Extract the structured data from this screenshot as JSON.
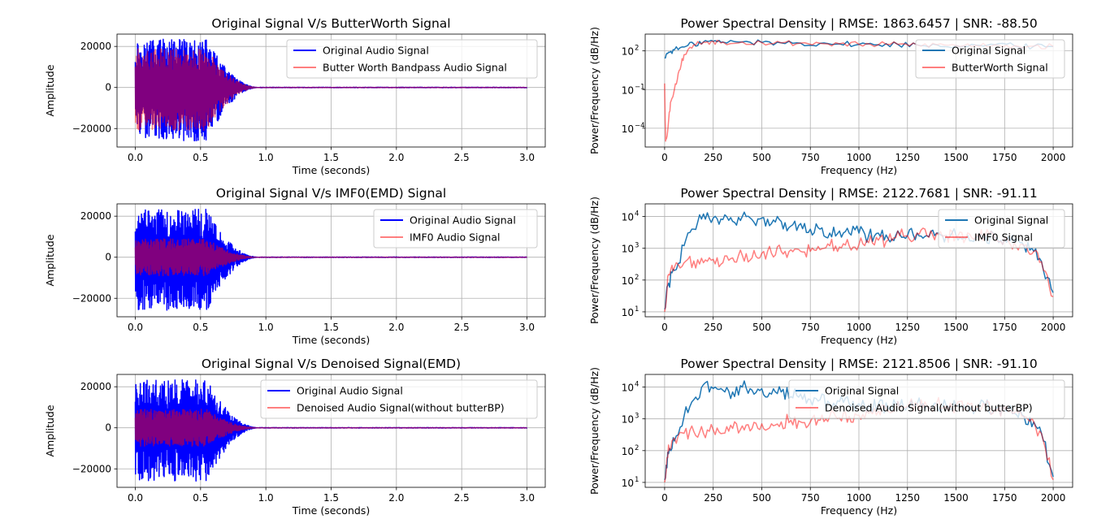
{
  "chart_data": [
    {
      "type": "line",
      "title": "Original Signal V/s ButterWorth Signal",
      "xlabel": "Time (seconds)",
      "ylabel": "Amplitude",
      "xlim": [
        -0.14,
        3.14
      ],
      "ylim": [
        -29000,
        26000
      ],
      "xticks": [
        0.0,
        0.5,
        1.0,
        1.5,
        2.0,
        2.5,
        3.0
      ],
      "xtick_labels": [
        "0.0",
        "0.5",
        "1.0",
        "1.5",
        "2.0",
        "2.5",
        "3.0"
      ],
      "yticks": [
        -20000,
        0,
        20000
      ],
      "ytick_labels": [
        "−20000",
        "0",
        "20000"
      ],
      "grid": true,
      "legend": "upper right",
      "series": [
        {
          "name": "Original Audio Signal",
          "color": "#0000ff",
          "opacity": 1.0,
          "envelope": {
            "peak": 23500,
            "trough": -26000,
            "active_until": 0.55,
            "decay_until": 0.95,
            "noise_floor": 250,
            "t_end": 3.0
          }
        },
        {
          "name": "Butter Worth Bandpass Audio Signal",
          "color": "#ff0000",
          "opacity": 0.5,
          "envelope": {
            "peak": 19000,
            "trough": -21000,
            "active_until": 0.55,
            "decay_until": 0.95,
            "noise_floor": 150,
            "t_end": 3.0
          }
        }
      ]
    },
    {
      "type": "line",
      "title": "Power Spectral Density | RMSE: 1863.6457 | SNR: -88.50",
      "xlabel": "Frequency (Hz)",
      "ylabel": "Power/Frequency (dB/Hz)",
      "yscale": "log",
      "xlim": [
        -100,
        2100
      ],
      "ylim": [
        3.5e-06,
        2000
      ],
      "xticks": [
        0,
        250,
        500,
        750,
        1000,
        1250,
        1500,
        1750,
        2000
      ],
      "xtick_labels": [
        "0",
        "250",
        "500",
        "750",
        "1000",
        "1250",
        "1500",
        "1750",
        "2000"
      ],
      "yticks": [
        0.0001,
        0.1,
        100
      ],
      "ytick_labels": [
        "10",
        "10",
        "10"
      ],
      "ytick_exponents": [
        "−4",
        "−1",
        "2"
      ],
      "grid": true,
      "legend": "upper right",
      "series": [
        {
          "name": "Original Signal",
          "color": "#1f77b4",
          "opacity": 1.0,
          "x": [
            0,
            20,
            50,
            100,
            150,
            200,
            250,
            300,
            400,
            500,
            600,
            700,
            800,
            900,
            1000,
            1100,
            1200,
            1300,
            1400,
            1500,
            1600,
            1700,
            1800,
            1900,
            2000
          ],
          "y": [
            30,
            80,
            120,
            200,
            350,
            500,
            550,
            480,
            500,
            450,
            420,
            400,
            380,
            350,
            320,
            300,
            320,
            290,
            300,
            260,
            280,
            300,
            250,
            230,
            220
          ]
        },
        {
          "name": "ButterWorth Signal",
          "color": "#ff0000",
          "opacity": 0.5,
          "x": [
            0,
            5,
            15,
            30,
            50,
            75,
            100,
            150,
            200,
            250,
            300,
            400,
            500,
            600,
            700,
            800,
            900,
            1000,
            1100,
            1200,
            1300,
            1400,
            1500,
            1600,
            1700,
            1800,
            1900,
            2000
          ],
          "y": [
            0.3,
            1e-05,
            5e-05,
            0.01,
            0.1,
            3,
            50,
            300,
            480,
            550,
            480,
            500,
            450,
            420,
            400,
            380,
            350,
            320,
            300,
            320,
            290,
            300,
            260,
            280,
            300,
            250,
            230,
            220
          ]
        }
      ]
    },
    {
      "type": "line",
      "title": "Original Signal V/s IMF0(EMD) Signal",
      "xlabel": "Time (seconds)",
      "ylabel": "Amplitude",
      "xlim": [
        -0.14,
        3.14
      ],
      "ylim": [
        -29000,
        26000
      ],
      "xticks": [
        0.0,
        0.5,
        1.0,
        1.5,
        2.0,
        2.5,
        3.0
      ],
      "xtick_labels": [
        "0.0",
        "0.5",
        "1.0",
        "1.5",
        "2.0",
        "2.5",
        "3.0"
      ],
      "yticks": [
        -20000,
        0,
        20000
      ],
      "ytick_labels": [
        "−20000",
        "0",
        "20000"
      ],
      "grid": true,
      "legend": "upper right",
      "series": [
        {
          "name": "Original Audio Signal",
          "color": "#0000ff",
          "opacity": 1.0,
          "envelope": {
            "peak": 23500,
            "trough": -26000,
            "active_until": 0.55,
            "decay_until": 0.95,
            "noise_floor": 250,
            "t_end": 3.0
          }
        },
        {
          "name": "IMF0 Audio Signal",
          "color": "#ff0000",
          "opacity": 0.5,
          "envelope": {
            "peak": 9000,
            "trough": -9000,
            "active_until": 0.55,
            "decay_until": 0.95,
            "noise_floor": 150,
            "t_end": 3.0
          }
        }
      ]
    },
    {
      "type": "line",
      "title": "Power Spectral Density | RMSE: 2122.7681 | SNR: -91.11",
      "xlabel": "Frequency (Hz)",
      "ylabel": "Power/Frequency (dB/Hz)",
      "yscale": "log",
      "xlim": [
        -100,
        2100
      ],
      "ylim": [
        7,
        25000
      ],
      "xticks": [
        0,
        250,
        500,
        750,
        1000,
        1250,
        1500,
        1750,
        2000
      ],
      "xtick_labels": [
        "0",
        "250",
        "500",
        "750",
        "1000",
        "1250",
        "1500",
        "1750",
        "2000"
      ],
      "yticks": [
        10,
        100,
        1000,
        10000
      ],
      "ytick_labels": [
        "10",
        "10",
        "10",
        "10"
      ],
      "ytick_exponents": [
        "1",
        "2",
        "3",
        "4"
      ],
      "grid": true,
      "legend": "upper right",
      "series": [
        {
          "name": "Original Signal",
          "color": "#1f77b4",
          "opacity": 1.0,
          "x": [
            0,
            20,
            50,
            100,
            150,
            200,
            250,
            300,
            350,
            400,
            450,
            500,
            550,
            600,
            650,
            700,
            750,
            800,
            850,
            900,
            950,
            1000,
            1050,
            1100,
            1150,
            1200,
            1250,
            1300,
            1350,
            1400,
            1450,
            1500,
            1550,
            1600,
            1650,
            1700,
            1750,
            1800,
            1850,
            1900,
            1950,
            2000
          ],
          "y": [
            12,
            80,
            200,
            1200,
            4000,
            12000,
            9000,
            8000,
            7000,
            10000,
            8000,
            9000,
            6000,
            7000,
            5000,
            6000,
            4000,
            4000,
            3000,
            3500,
            3000,
            3000,
            2500,
            3000,
            2000,
            3500,
            2500,
            3000,
            2500,
            3000,
            2500,
            2500,
            2000,
            2200,
            2500,
            2000,
            2000,
            1500,
            1200,
            800,
            200,
            40
          ]
        },
        {
          "name": "IMF0 Signal",
          "color": "#ff0000",
          "opacity": 0.5,
          "x": [
            0,
            20,
            50,
            100,
            150,
            200,
            250,
            300,
            350,
            400,
            450,
            500,
            550,
            600,
            650,
            700,
            750,
            800,
            850,
            900,
            950,
            1000,
            1050,
            1100,
            1150,
            1200,
            1250,
            1300,
            1350,
            1400,
            1450,
            1500,
            1550,
            1600,
            1650,
            1700,
            1750,
            1800,
            1850,
            1900,
            1950,
            2000
          ],
          "y": [
            10,
            150,
            250,
            350,
            400,
            350,
            450,
            350,
            500,
            600,
            500,
            700,
            700,
            800,
            900,
            800,
            800,
            900,
            1200,
            1100,
            1200,
            1300,
            1500,
            1800,
            1800,
            3500,
            2500,
            3000,
            2500,
            3000,
            2500,
            2500,
            2000,
            2200,
            2500,
            2000,
            2000,
            1500,
            1200,
            800,
            200,
            30
          ]
        }
      ]
    },
    {
      "type": "line",
      "title": "Original Signal V/s Denoised Signal(EMD)",
      "xlabel": "Time (seconds)",
      "ylabel": "Amplitude",
      "xlim": [
        -0.14,
        3.14
      ],
      "ylim": [
        -29000,
        26000
      ],
      "xticks": [
        0.0,
        0.5,
        1.0,
        1.5,
        2.0,
        2.5,
        3.0
      ],
      "xtick_labels": [
        "0.0",
        "0.5",
        "1.0",
        "1.5",
        "2.0",
        "2.5",
        "3.0"
      ],
      "yticks": [
        -20000,
        0,
        20000
      ],
      "ytick_labels": [
        "−20000",
        "0",
        "20000"
      ],
      "grid": true,
      "legend": "upper right",
      "series": [
        {
          "name": "Original Audio Signal",
          "color": "#0000ff",
          "opacity": 1.0,
          "envelope": {
            "peak": 23500,
            "trough": -26000,
            "active_until": 0.55,
            "decay_until": 0.95,
            "noise_floor": 250,
            "t_end": 3.0
          }
        },
        {
          "name": "Denoised Audio Signal(without butterBP)",
          "color": "#ff0000",
          "opacity": 0.5,
          "envelope": {
            "peak": 9000,
            "trough": -9000,
            "active_until": 0.55,
            "decay_until": 0.95,
            "noise_floor": 150,
            "t_end": 3.0
          }
        }
      ]
    },
    {
      "type": "line",
      "title": "Power Spectral Density | RMSE: 2121.8506 | SNR: -91.10",
      "xlabel": "Frequency (Hz)",
      "ylabel": "Power/Frequency (dB/Hz)",
      "yscale": "log",
      "xlim": [
        -100,
        2100
      ],
      "ylim": [
        7,
        25000
      ],
      "xticks": [
        0,
        250,
        500,
        750,
        1000,
        1250,
        1500,
        1750,
        2000
      ],
      "xtick_labels": [
        "0",
        "250",
        "500",
        "750",
        "1000",
        "1250",
        "1500",
        "1750",
        "2000"
      ],
      "yticks": [
        10,
        100,
        1000,
        10000
      ],
      "ytick_labels": [
        "10",
        "10",
        "10",
        "10"
      ],
      "ytick_exponents": [
        "1",
        "2",
        "3",
        "4"
      ],
      "grid": true,
      "legend": "upper right",
      "series": [
        {
          "name": "Original Signal",
          "color": "#1f77b4",
          "opacity": 1.0,
          "x": [
            0,
            20,
            50,
            100,
            150,
            200,
            250,
            300,
            350,
            400,
            450,
            500,
            550,
            600,
            650,
            700,
            750,
            800,
            850,
            900,
            950,
            1000,
            1050,
            1100,
            1150,
            1200,
            1250,
            1300,
            1350,
            1400,
            1450,
            1500,
            1550,
            1600,
            1650,
            1700,
            1750,
            1800,
            1850,
            1900,
            1950,
            2000
          ],
          "y": [
            12,
            80,
            200,
            1200,
            4000,
            12000,
            9000,
            8000,
            7000,
            10000,
            8000,
            9000,
            6000,
            7000,
            5000,
            6000,
            4000,
            4000,
            3000,
            3500,
            3000,
            3000,
            2500,
            3000,
            2000,
            3500,
            2500,
            3000,
            2500,
            3000,
            2500,
            2500,
            2000,
            2200,
            2500,
            2000,
            2000,
            1500,
            1200,
            800,
            200,
            15
          ]
        },
        {
          "name": "Denoised Audio Signal(without butterBP)",
          "color": "#ff0000",
          "opacity": 0.5,
          "x": [
            0,
            20,
            50,
            100,
            150,
            200,
            250,
            300,
            350,
            400,
            450,
            500,
            550,
            600,
            650,
            700,
            750,
            800,
            850,
            900,
            950,
            1000,
            1050,
            1100,
            1150,
            1200,
            1250,
            1300,
            1350,
            1400,
            1450,
            1500,
            1550,
            1600,
            1650,
            1700,
            1750,
            1800,
            1850,
            1900,
            1950,
            2000
          ],
          "y": [
            10,
            150,
            250,
            350,
            400,
            350,
            450,
            350,
            500,
            600,
            500,
            700,
            700,
            800,
            900,
            800,
            800,
            900,
            1200,
            1100,
            1200,
            1300,
            1500,
            1800,
            1800,
            3500,
            2500,
            3000,
            2500,
            3000,
            2500,
            2500,
            2000,
            2200,
            2500,
            2000,
            2000,
            1500,
            1200,
            800,
            200,
            12
          ]
        }
      ]
    }
  ]
}
